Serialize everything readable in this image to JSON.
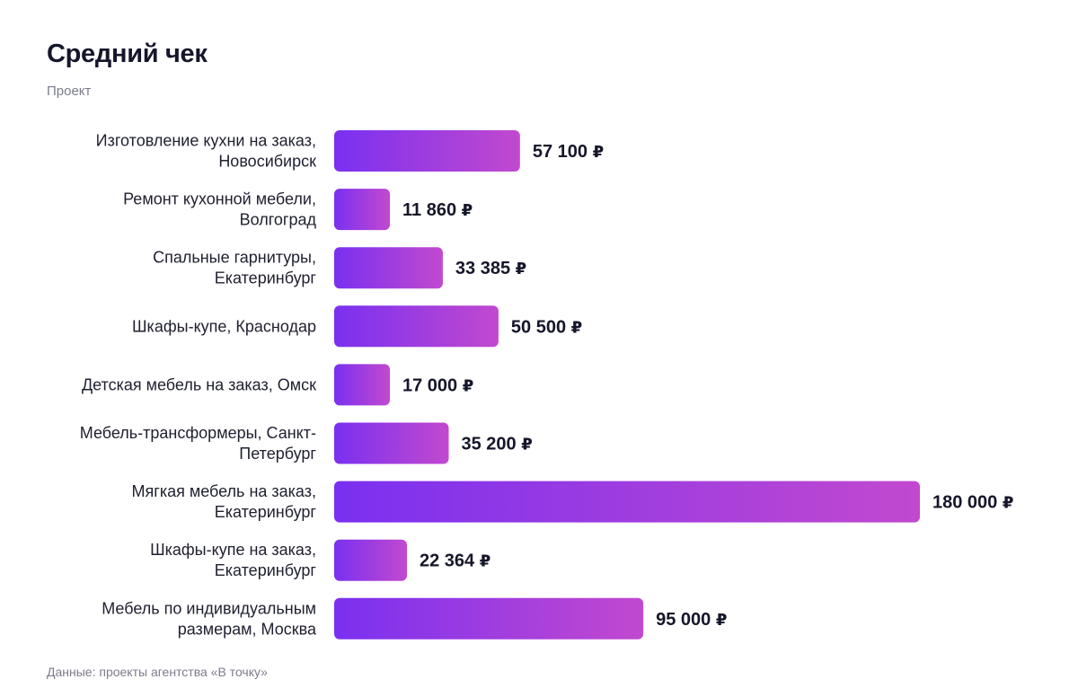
{
  "header": {
    "title": "Средний чек",
    "subtitle": "Проект"
  },
  "footer": {
    "source": "Данные: проекты агентства «В точку»"
  },
  "colors": {
    "bar_start": "#7a30f0",
    "bar_end": "#c249cf",
    "text": "#15162a",
    "muted": "#7b7c8c"
  },
  "chart_data": {
    "type": "bar",
    "orientation": "horizontal",
    "title": "Средний чек",
    "subtitle": "Проект",
    "currency": "₽",
    "grid": false,
    "legend": "none",
    "xlim": [
      0,
      180000
    ],
    "categories": [
      [
        "Изготовление кухни на заказ,",
        "Новосибирск"
      ],
      [
        "Ремонт кухонной мебели,",
        "Волгоград"
      ],
      [
        "Спальные гарнитуры,",
        "Екатеринбург"
      ],
      [
        "Шкафы-купе, Краснодар"
      ],
      [
        "Детская мебель на заказ, Омск"
      ],
      [
        "Мебель-трансформеры, Санкт-",
        "Петербург"
      ],
      [
        "Мягкая мебель на заказ,",
        "Екатеринбург"
      ],
      [
        "Шкафы-купе на заказ,",
        "Екатеринбург"
      ],
      [
        "Мебель по индивидуальным",
        "размерам, Москва"
      ]
    ],
    "values": [
      57100,
      11860,
      33385,
      50500,
      17000,
      35200,
      180000,
      22364,
      95000
    ],
    "value_labels": [
      "57 100",
      "11 860",
      "33 385",
      "50 500",
      "17 000",
      "35 200",
      "180 000",
      "22 364",
      "95 000"
    ]
  }
}
